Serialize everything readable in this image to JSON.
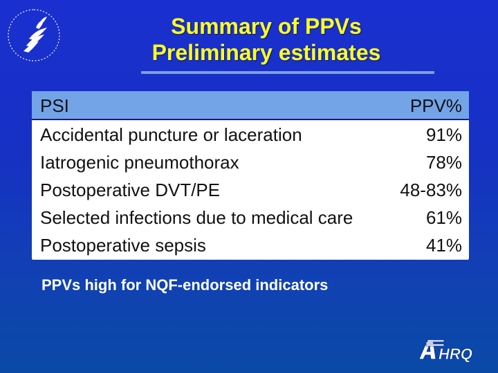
{
  "title": {
    "line1": "Summary of PPVs",
    "line2": "Preliminary estimates"
  },
  "table": {
    "headers": [
      "PSI",
      "PPV%"
    ],
    "rows": [
      {
        "indicator": "Accidental puncture or laceration",
        "ppv": "91%"
      },
      {
        "indicator": "Iatrogenic pneumothorax",
        "ppv": "78%"
      },
      {
        "indicator": "Postoperative DVT/PE",
        "ppv": "48-83%"
      },
      {
        "indicator": "Selected infections due to medical care",
        "ppv": "61%"
      },
      {
        "indicator": "Postoperative sepsis",
        "ppv": "41%"
      }
    ]
  },
  "note": "PPVs high for NQF-endorsed indicators",
  "logos": {
    "seal": "hhs-seal",
    "agency": "AHRQ"
  },
  "colors": {
    "background": "#1631c4",
    "title": "#ffff22",
    "table_header": "#73a4e8",
    "note": "#ffffff"
  }
}
